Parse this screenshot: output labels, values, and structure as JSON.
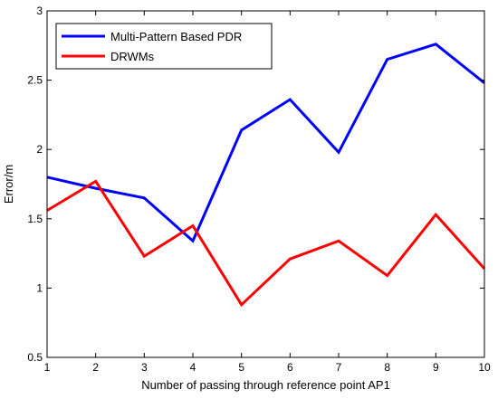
{
  "chart_data": {
    "type": "line",
    "xlabel": "Number of passing through reference point AP1",
    "ylabel": "Error/m",
    "xlim": [
      1,
      10
    ],
    "ylim": [
      0.5,
      3
    ],
    "x": [
      1,
      2,
      3,
      4,
      5,
      6,
      7,
      8,
      9,
      10
    ],
    "xticks": [
      "1",
      "2",
      "3",
      "4",
      "5",
      "6",
      "7",
      "8",
      "9",
      "10"
    ],
    "yticks": [
      "0.5",
      "1",
      "1.5",
      "2",
      "2.5",
      "3"
    ],
    "ytick_values": [
      0.5,
      1,
      1.5,
      2,
      2.5,
      3
    ],
    "grid": false,
    "legend_position": "top-left",
    "series": [
      {
        "name": "Multi-Pattern Based PDR",
        "color": "#0000ff",
        "values": [
          1.8,
          1.72,
          1.65,
          1.34,
          2.14,
          2.36,
          1.98,
          2.65,
          2.76,
          2.48
        ]
      },
      {
        "name": "DRWMs",
        "color": "#ff0000",
        "values": [
          1.56,
          1.77,
          1.23,
          1.45,
          0.88,
          1.21,
          1.34,
          1.09,
          1.53,
          1.14
        ]
      }
    ]
  }
}
